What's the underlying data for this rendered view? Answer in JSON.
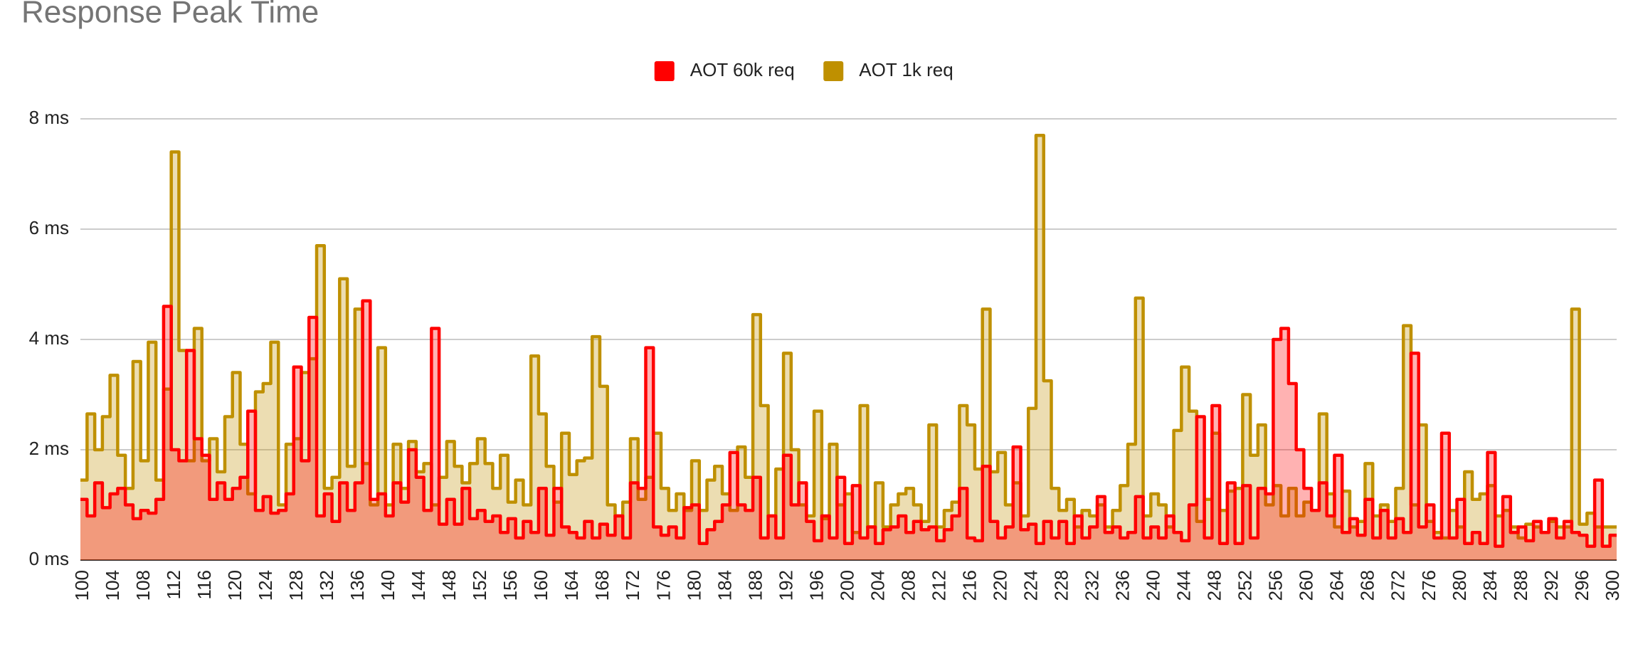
{
  "chart_data": {
    "type": "stepped-area",
    "title": "Response Peak Time",
    "x": [
      100,
      101,
      102,
      103,
      104,
      105,
      106,
      107,
      108,
      109,
      110,
      111,
      112,
      113,
      114,
      115,
      116,
      117,
      118,
      119,
      120,
      121,
      122,
      123,
      124,
      125,
      126,
      127,
      128,
      129,
      130,
      131,
      132,
      133,
      134,
      135,
      136,
      137,
      138,
      139,
      140,
      141,
      142,
      143,
      144,
      145,
      146,
      147,
      148,
      149,
      150,
      151,
      152,
      153,
      154,
      155,
      156,
      157,
      158,
      159,
      160,
      161,
      162,
      163,
      164,
      165,
      166,
      167,
      168,
      169,
      170,
      171,
      172,
      173,
      174,
      175,
      176,
      177,
      178,
      179,
      180,
      181,
      182,
      183,
      184,
      185,
      186,
      187,
      188,
      189,
      190,
      191,
      192,
      193,
      194,
      195,
      196,
      197,
      198,
      199,
      200,
      201,
      202,
      203,
      204,
      205,
      206,
      207,
      208,
      209,
      210,
      211,
      212,
      213,
      214,
      215,
      216,
      217,
      218,
      219,
      220,
      221,
      222,
      223,
      224,
      225,
      226,
      227,
      228,
      229,
      230,
      231,
      232,
      233,
      234,
      235,
      236,
      237,
      238,
      239,
      240,
      241,
      242,
      243,
      244,
      245,
      246,
      247,
      248,
      249,
      250,
      251,
      252,
      253,
      254,
      255,
      256,
      257,
      258,
      259,
      260,
      261,
      262,
      263,
      264,
      265,
      266,
      267,
      268,
      269,
      270,
      271,
      272,
      273,
      274,
      275,
      276,
      277,
      278,
      279,
      280,
      281,
      282,
      283,
      284,
      285,
      286,
      287,
      288,
      289,
      290,
      291,
      292,
      293,
      294,
      295,
      296,
      297,
      298,
      299,
      300
    ],
    "xlim": [
      100,
      300
    ],
    "xticks": [
      100,
      104,
      108,
      112,
      116,
      120,
      124,
      128,
      132,
      136,
      140,
      144,
      148,
      152,
      156,
      160,
      164,
      168,
      172,
      176,
      180,
      184,
      188,
      192,
      196,
      200,
      204,
      208,
      212,
      216,
      220,
      224,
      228,
      232,
      236,
      240,
      244,
      248,
      252,
      256,
      260,
      264,
      268,
      272,
      276,
      280,
      284,
      288,
      292,
      296,
      300
    ],
    "ylim": [
      0,
      8
    ],
    "yticks": [
      {
        "value": 0,
        "label": "0 ms"
      },
      {
        "value": 2,
        "label": "2 ms"
      },
      {
        "value": 4,
        "label": "4 ms"
      },
      {
        "value": 6,
        "label": "6 ms"
      },
      {
        "value": 8,
        "label": "8 ms"
      }
    ],
    "grid": true,
    "legend": "top",
    "series": [
      {
        "name": "AOT 1k req",
        "color": "#bf9000",
        "values": [
          1.45,
          2.65,
          2.0,
          2.6,
          3.35,
          1.9,
          1.3,
          3.6,
          1.8,
          3.95,
          1.45,
          3.1,
          7.4,
          3.8,
          1.8,
          4.2,
          1.8,
          2.2,
          1.6,
          2.6,
          3.4,
          2.1,
          1.2,
          3.05,
          3.2,
          3.95,
          1.0,
          2.1,
          2.2,
          3.4,
          3.65,
          5.7,
          1.3,
          1.5,
          5.1,
          1.7,
          4.55,
          1.75,
          1.0,
          3.85,
          1.0,
          2.1,
          1.3,
          2.15,
          1.6,
          1.75,
          1.0,
          1.5,
          2.15,
          1.7,
          1.4,
          1.75,
          2.2,
          1.75,
          1.3,
          1.9,
          1.05,
          1.45,
          1.0,
          3.7,
          2.65,
          1.7,
          1.05,
          2.3,
          1.55,
          1.8,
          1.85,
          4.05,
          3.15,
          1.0,
          0.8,
          1.05,
          2.2,
          1.1,
          1.5,
          2.3,
          1.3,
          0.9,
          1.2,
          0.9,
          1.8,
          0.9,
          1.45,
          1.7,
          1.2,
          0.9,
          2.05,
          1.5,
          4.45,
          2.8,
          0.8,
          1.65,
          3.75,
          2.0,
          1.0,
          0.8,
          2.7,
          0.75,
          2.1,
          1.0,
          1.2,
          0.5,
          2.8,
          0.6,
          1.4,
          0.6,
          1.0,
          1.2,
          1.3,
          1.0,
          0.7,
          2.45,
          0.6,
          0.9,
          1.05,
          2.8,
          2.45,
          1.65,
          4.55,
          1.6,
          1.95,
          1.0,
          1.4,
          0.8,
          2.75,
          7.7,
          3.25,
          1.3,
          0.9,
          1.1,
          0.6,
          0.9,
          0.8,
          1.0,
          0.6,
          0.9,
          1.35,
          2.1,
          4.75,
          0.8,
          1.2,
          1.0,
          0.6,
          2.35,
          3.5,
          2.7,
          0.7,
          1.1,
          2.3,
          0.9,
          1.25,
          1.3,
          3.0,
          1.9,
          2.45,
          1.0,
          1.35,
          0.8,
          1.3,
          0.8,
          1.05,
          0.9,
          2.65,
          1.2,
          0.6,
          1.25,
          0.6,
          0.7,
          1.75,
          0.8,
          1.0,
          0.7,
          1.3,
          4.25,
          1.0,
          2.45,
          0.7,
          0.5,
          0.4,
          0.9,
          0.6,
          1.6,
          1.1,
          1.2,
          1.35,
          0.8,
          0.9,
          0.6,
          0.4,
          0.65,
          0.6,
          0.5,
          0.7,
          0.6,
          0.6,
          4.55,
          0.65,
          0.85,
          0.6,
          0.6,
          0.6
        ]
      },
      {
        "name": "AOT 60k req",
        "color": "#ff0000",
        "values": [
          1.1,
          0.8,
          1.4,
          0.95,
          1.2,
          1.3,
          1.0,
          0.75,
          0.9,
          0.85,
          1.1,
          4.6,
          2.0,
          1.8,
          3.8,
          2.2,
          1.9,
          1.1,
          1.4,
          1.1,
          1.3,
          1.5,
          2.7,
          0.9,
          1.15,
          0.85,
          0.9,
          1.2,
          3.5,
          1.8,
          4.4,
          0.8,
          1.2,
          0.7,
          1.4,
          0.9,
          1.4,
          4.7,
          1.1,
          1.2,
          0.8,
          1.4,
          1.05,
          2.0,
          1.5,
          0.9,
          4.2,
          0.65,
          1.1,
          0.65,
          1.3,
          0.75,
          0.9,
          0.7,
          0.8,
          0.5,
          0.75,
          0.4,
          0.7,
          0.5,
          1.3,
          0.45,
          1.3,
          0.6,
          0.5,
          0.4,
          0.7,
          0.4,
          0.65,
          0.45,
          0.8,
          0.4,
          1.4,
          1.3,
          3.85,
          0.6,
          0.45,
          0.6,
          0.4,
          0.95,
          1.0,
          0.3,
          0.55,
          0.7,
          1.0,
          1.95,
          1.0,
          0.9,
          1.5,
          0.4,
          0.8,
          0.4,
          1.9,
          1.0,
          1.4,
          0.7,
          0.35,
          0.8,
          0.4,
          1.5,
          0.3,
          1.35,
          0.4,
          0.6,
          0.3,
          0.55,
          0.6,
          0.8,
          0.5,
          0.7,
          0.55,
          0.6,
          0.35,
          0.55,
          0.8,
          1.3,
          0.4,
          0.35,
          1.7,
          0.7,
          0.4,
          0.6,
          2.05,
          0.55,
          0.65,
          0.3,
          0.7,
          0.4,
          0.7,
          0.3,
          0.8,
          0.4,
          0.6,
          1.15,
          0.5,
          0.6,
          0.4,
          0.5,
          1.15,
          0.4,
          0.6,
          0.4,
          0.8,
          0.5,
          0.35,
          1.0,
          2.6,
          0.4,
          2.8,
          0.3,
          1.4,
          0.3,
          1.35,
          0.4,
          1.3,
          1.2,
          4.0,
          4.2,
          3.2,
          2.0,
          1.3,
          0.9,
          1.4,
          0.8,
          1.9,
          0.5,
          0.75,
          0.45,
          1.1,
          0.4,
          0.9,
          0.4,
          0.75,
          0.5,
          3.75,
          0.6,
          1.0,
          0.4,
          2.3,
          0.4,
          1.1,
          0.3,
          0.5,
          0.3,
          1.95,
          0.25,
          1.15,
          0.5,
          0.6,
          0.35,
          0.7,
          0.5,
          0.75,
          0.4,
          0.7,
          0.5,
          0.45,
          0.25,
          1.45,
          0.25,
          0.45
        ]
      }
    ]
  }
}
